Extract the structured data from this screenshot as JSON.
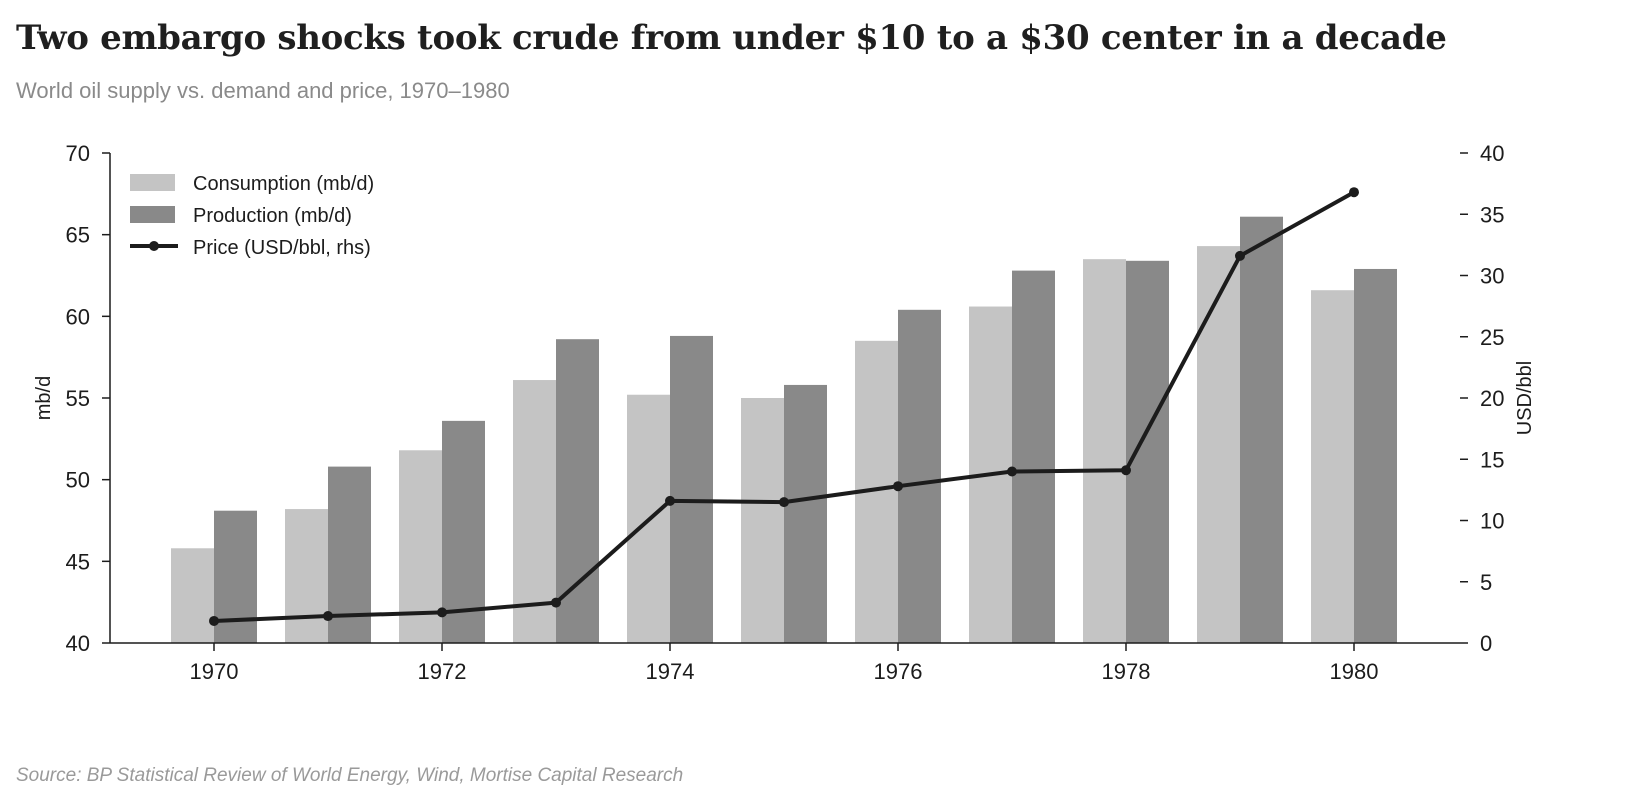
{
  "title": "Two embargo shocks took crude from under $10 to a $30 center in a decade",
  "subtitle": "World oil supply vs. demand and price, 1970–1980",
  "source": "Source: BP Statistical Review of World Energy, Wind, Mortise Capital Research",
  "colors": {
    "consumption": "#c4c4c4",
    "production": "#898989",
    "price": "#1c1c1c",
    "axis": "#1c1c1c",
    "text": "#1c1c1c"
  },
  "chart_data": {
    "type": "bar",
    "categories": [
      1970,
      1971,
      1972,
      1973,
      1974,
      1975,
      1976,
      1977,
      1978,
      1979,
      1980
    ],
    "x_tick_labels": [
      "1970",
      "1972",
      "1974",
      "1976",
      "1978",
      "1980"
    ],
    "series": [
      {
        "name": "Consumption (mb/d)",
        "type": "bar",
        "axis": "left",
        "values": [
          45.8,
          48.2,
          51.8,
          56.1,
          55.2,
          55.0,
          58.5,
          60.6,
          63.5,
          64.3,
          61.6
        ]
      },
      {
        "name": "Production (mb/d)",
        "type": "bar",
        "axis": "left",
        "values": [
          48.1,
          50.8,
          53.6,
          58.6,
          58.8,
          55.8,
          60.4,
          62.8,
          63.4,
          66.1,
          62.9
        ]
      },
      {
        "name": "Price (USD/bbl, rhs)",
        "type": "line",
        "axis": "right",
        "values": [
          1.8,
          2.2,
          2.5,
          3.3,
          11.6,
          11.5,
          12.8,
          14.0,
          14.1,
          31.6,
          36.8
        ]
      }
    ],
    "ylabel": "mb/d",
    "ylabel_right": "USD/bbl",
    "ylim": [
      40,
      70
    ],
    "yticks": [
      40,
      45,
      50,
      55,
      60,
      65,
      70
    ],
    "ylim_right": [
      0,
      40
    ],
    "yticks_right": [
      0,
      5,
      10,
      15,
      20,
      25,
      30,
      35,
      40
    ],
    "grid": false,
    "legend_position": "top-left"
  }
}
